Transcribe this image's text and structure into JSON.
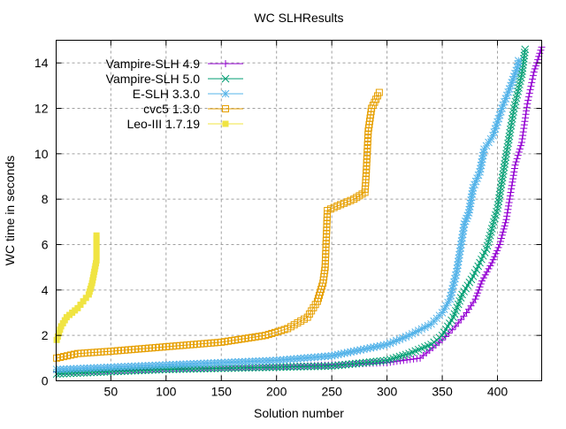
{
  "chart_data": {
    "type": "line",
    "title": "WC SLHResults",
    "xlabel": "Solution number",
    "ylabel": "WC time in seconds",
    "xlim": [
      1,
      440
    ],
    "ylim": [
      0,
      15
    ],
    "xticks": [
      50,
      100,
      150,
      200,
      250,
      300,
      350,
      400
    ],
    "yticks": [
      0,
      2,
      4,
      6,
      8,
      10,
      12,
      14
    ],
    "grid": true,
    "legend_position": "top-left",
    "series": [
      {
        "name": "Vampire-SLH 4.9",
        "color": "#9400d3",
        "marker": "plus",
        "x": [
          1,
          50,
          100,
          150,
          200,
          250,
          300,
          330,
          350,
          362,
          372,
          380,
          386,
          395,
          402,
          408,
          416,
          422,
          427,
          433,
          440
        ],
        "y": [
          0.4,
          0.45,
          0.5,
          0.55,
          0.6,
          0.7,
          0.8,
          1.0,
          1.8,
          2.4,
          3.0,
          3.6,
          4.4,
          5.2,
          6.0,
          7.1,
          9.5,
          10.5,
          12.2,
          13.6,
          14.7
        ]
      },
      {
        "name": "Vampire-SLH 5.0",
        "color": "#009e73",
        "marker": "cross",
        "x": [
          1,
          50,
          100,
          150,
          200,
          250,
          300,
          320,
          340,
          350,
          360,
          368,
          378,
          390,
          400,
          408,
          415,
          422,
          425
        ],
        "y": [
          0.3,
          0.4,
          0.5,
          0.55,
          0.6,
          0.65,
          0.9,
          1.2,
          1.6,
          2.0,
          2.8,
          3.8,
          4.6,
          5.8,
          7.6,
          10.0,
          12.0,
          13.5,
          14.6
        ]
      },
      {
        "name": "E-SLH 3.3.0",
        "color": "#56b4e9",
        "marker": "star",
        "x": [
          1,
          50,
          100,
          150,
          200,
          250,
          270,
          300,
          320,
          340,
          350,
          357,
          363,
          370,
          374,
          378,
          384,
          388,
          396,
          404,
          412,
          418,
          419
        ],
        "y": [
          0.5,
          0.6,
          0.7,
          0.8,
          0.9,
          1.1,
          1.3,
          1.6,
          2.0,
          2.5,
          3.0,
          3.6,
          4.8,
          6.9,
          7.4,
          8.5,
          9.2,
          10.2,
          10.8,
          12.0,
          13.0,
          13.8,
          14.1
        ]
      },
      {
        "name": "cvc5 1.3.0",
        "color": "#e69f00",
        "marker": "square-open",
        "x": [
          1,
          20,
          50,
          100,
          150,
          190,
          210,
          228,
          237,
          242,
          244,
          246,
          255,
          270,
          280,
          281,
          283,
          286,
          290,
          293
        ],
        "y": [
          1.0,
          1.2,
          1.3,
          1.5,
          1.7,
          2.0,
          2.3,
          2.8,
          3.5,
          4.3,
          5.0,
          7.5,
          7.7,
          8.0,
          8.3,
          9.0,
          11.0,
          12.0,
          12.4,
          12.7
        ]
      },
      {
        "name": "Leo-III 1.7.19",
        "color": "#f0e442",
        "marker": "square-filled",
        "x": [
          1,
          3,
          5,
          10,
          15,
          20,
          25,
          30,
          33,
          35,
          37,
          37
        ],
        "y": [
          1.8,
          2.1,
          2.4,
          2.8,
          3.0,
          3.2,
          3.5,
          3.8,
          4.3,
          4.8,
          5.3,
          6.4
        ]
      }
    ]
  }
}
